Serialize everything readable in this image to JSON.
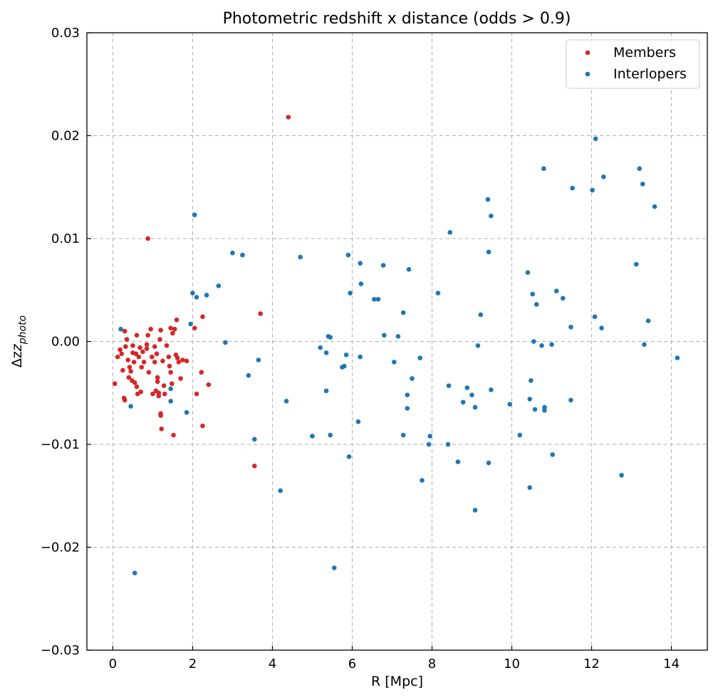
{
  "chart_data": {
    "type": "scatter",
    "title": "Photometric redshift x distance (odds > 0.9)",
    "xlabel": "R [Mpc]",
    "ylabel_main": "Δz",
    "ylabel_sub": "photo",
    "xlim": [
      -0.65,
      14.9
    ],
    "ylim": [
      -0.03,
      0.03
    ],
    "x_ticks": [
      0,
      2,
      4,
      6,
      8,
      10,
      12,
      14
    ],
    "x_tick_labels": [
      "0",
      "2",
      "4",
      "6",
      "8",
      "10",
      "12",
      "14"
    ],
    "y_ticks": [
      -0.03,
      -0.02,
      -0.01,
      0.0,
      0.01,
      0.02,
      0.03
    ],
    "y_tick_labels": [
      "−0.03",
      "−0.02",
      "−0.01",
      "0.00",
      "0.01",
      "0.02",
      "0.03"
    ],
    "grid": true,
    "legend_position": "top-right",
    "series": [
      {
        "name": "Members",
        "color": "#d62728",
        "points": [
          [
            0.05,
            -0.0041
          ],
          [
            0.12,
            -0.0015
          ],
          [
            0.18,
            -0.0008
          ],
          [
            0.22,
            -0.0012
          ],
          [
            0.25,
            -0.0028
          ],
          [
            0.28,
            -0.0055
          ],
          [
            0.3,
            -0.0057
          ],
          [
            0.3,
            0.001
          ],
          [
            0.32,
            -0.0005
          ],
          [
            0.35,
            0.0002
          ],
          [
            0.38,
            -0.0018
          ],
          [
            0.4,
            -0.0035
          ],
          [
            0.42,
            -0.0025
          ],
          [
            0.45,
            -0.0029
          ],
          [
            0.48,
            -0.0038
          ],
          [
            0.5,
            -0.0004
          ],
          [
            0.5,
            -0.0011
          ],
          [
            0.53,
            -0.002
          ],
          [
            0.55,
            -0.004
          ],
          [
            0.58,
            -0.0012
          ],
          [
            0.6,
            0.0006
          ],
          [
            0.6,
            -0.0044
          ],
          [
            0.62,
            -0.0051
          ],
          [
            0.65,
            -0.0015
          ],
          [
            0.68,
            -0.0006
          ],
          [
            0.7,
            -0.0049
          ],
          [
            0.72,
            -0.0025
          ],
          [
            0.75,
            -0.001
          ],
          [
            0.78,
            -0.002
          ],
          [
            0.85,
            -0.0003
          ],
          [
            0.85,
            -0.0007
          ],
          [
            0.88,
            0.0006
          ],
          [
            0.9,
            -0.003
          ],
          [
            0.95,
            0.0012
          ],
          [
            0.98,
            -0.0015
          ],
          [
            1.0,
            -0.0051
          ],
          [
            1.05,
            -0.0005
          ],
          [
            1.05,
            -0.002
          ],
          [
            1.08,
            -0.0048
          ],
          [
            1.1,
            -0.0012
          ],
          [
            1.12,
            -0.0035
          ],
          [
            1.12,
            -0.0039
          ],
          [
            1.15,
            -0.005
          ],
          [
            1.15,
            -0.0053
          ],
          [
            1.18,
            0.0002
          ],
          [
            1.2,
            0.0011
          ],
          [
            1.2,
            -0.007
          ],
          [
            1.2,
            -0.0072
          ],
          [
            1.22,
            -0.0085
          ],
          [
            1.25,
            -0.0019
          ],
          [
            1.28,
            -0.0043
          ],
          [
            1.3,
            -0.0051
          ],
          [
            1.35,
            -0.0004
          ],
          [
            1.4,
            -0.0015
          ],
          [
            1.42,
            -0.0024
          ],
          [
            1.45,
            -0.003
          ],
          [
            1.45,
            0.0013
          ],
          [
            1.48,
            -0.0041
          ],
          [
            1.5,
            0.0008
          ],
          [
            1.52,
            -0.0091
          ],
          [
            1.55,
            0.0012
          ],
          [
            1.58,
            -0.0013
          ],
          [
            1.6,
            0.0021
          ],
          [
            1.62,
            -0.0016
          ],
          [
            1.65,
            -0.002
          ],
          [
            1.7,
            -0.0036
          ],
          [
            1.75,
            -0.0018
          ],
          [
            1.85,
            -0.0019
          ],
          [
            2.05,
            0.0013
          ],
          [
            2.1,
            -0.0051
          ],
          [
            2.22,
            -0.003
          ],
          [
            2.25,
            0.0024
          ],
          [
            2.25,
            -0.0082
          ],
          [
            2.4,
            -0.0042
          ],
          [
            3.55,
            -0.0121
          ],
          [
            3.7,
            0.0027
          ],
          [
            4.4,
            0.0218
          ],
          [
            0.88,
            0.01
          ]
        ]
      },
      {
        "name": "Interlopers",
        "color": "#1f77b4",
        "points": [
          [
            0.2,
            0.0012
          ],
          [
            0.45,
            -0.0063
          ],
          [
            0.55,
            -0.0225
          ],
          [
            1.45,
            -0.0046
          ],
          [
            1.45,
            -0.0058
          ],
          [
            1.85,
            -0.0069
          ],
          [
            1.95,
            0.0017
          ],
          [
            2.0,
            0.0047
          ],
          [
            2.05,
            0.0123
          ],
          [
            2.1,
            0.0043
          ],
          [
            2.35,
            0.0045
          ],
          [
            2.65,
            0.0054
          ],
          [
            2.82,
            -0.0001
          ],
          [
            3.0,
            0.0086
          ],
          [
            3.25,
            0.0084
          ],
          [
            3.4,
            -0.0033
          ],
          [
            3.55,
            -0.0095
          ],
          [
            3.65,
            -0.0018
          ],
          [
            4.2,
            -0.0145
          ],
          [
            4.35,
            -0.0058
          ],
          [
            4.7,
            0.0082
          ],
          [
            5.0,
            -0.0092
          ],
          [
            5.2,
            -0.0006
          ],
          [
            5.35,
            -0.0011
          ],
          [
            5.35,
            -0.0048
          ],
          [
            5.4,
            0.0005
          ],
          [
            5.45,
            0.0004
          ],
          [
            5.45,
            -0.0091
          ],
          [
            5.55,
            -0.022
          ],
          [
            5.75,
            -0.0025
          ],
          [
            5.8,
            -0.0024
          ],
          [
            5.85,
            -0.0013
          ],
          [
            5.9,
            0.0084
          ],
          [
            5.92,
            -0.0112
          ],
          [
            5.95,
            0.0047
          ],
          [
            6.15,
            -0.0078
          ],
          [
            6.2,
            0.0076
          ],
          [
            6.2,
            -0.0015
          ],
          [
            6.22,
            0.0056
          ],
          [
            6.55,
            0.0041
          ],
          [
            6.65,
            0.0041
          ],
          [
            6.78,
            0.0074
          ],
          [
            6.8,
            0.0006
          ],
          [
            7.05,
            -0.002
          ],
          [
            7.15,
            0.0005
          ],
          [
            7.28,
            0.0028
          ],
          [
            7.28,
            -0.0091
          ],
          [
            7.38,
            -0.0052
          ],
          [
            7.38,
            -0.0065
          ],
          [
            7.42,
            0.007
          ],
          [
            7.5,
            -0.0036
          ],
          [
            7.7,
            -0.0016
          ],
          [
            7.75,
            -0.0135
          ],
          [
            7.92,
            -0.01
          ],
          [
            7.95,
            -0.0092
          ],
          [
            8.15,
            0.0047
          ],
          [
            8.4,
            -0.01
          ],
          [
            8.42,
            -0.0043
          ],
          [
            8.45,
            0.0106
          ],
          [
            8.65,
            -0.0117
          ],
          [
            8.78,
            -0.0059
          ],
          [
            8.88,
            -0.0045
          ],
          [
            9.0,
            -0.0052
          ],
          [
            9.08,
            -0.0064
          ],
          [
            9.08,
            -0.0164
          ],
          [
            9.15,
            -0.0004
          ],
          [
            9.22,
            0.0026
          ],
          [
            9.4,
            0.0138
          ],
          [
            9.42,
            0.0087
          ],
          [
            9.42,
            -0.0118
          ],
          [
            9.48,
            -0.0047
          ],
          [
            9.48,
            0.0122
          ],
          [
            9.95,
            -0.0061
          ],
          [
            10.2,
            -0.0091
          ],
          [
            10.4,
            0.0067
          ],
          [
            10.45,
            -0.0056
          ],
          [
            10.45,
            -0.0142
          ],
          [
            10.48,
            -0.0038
          ],
          [
            10.52,
            0.0046
          ],
          [
            10.55,
            0.0
          ],
          [
            10.58,
            -0.0066
          ],
          [
            10.62,
            0.0036
          ],
          [
            10.75,
            -0.0004
          ],
          [
            10.8,
            0.0168
          ],
          [
            10.82,
            -0.0064
          ],
          [
            10.82,
            -0.0067
          ],
          [
            11.0,
            -0.0003
          ],
          [
            11.02,
            -0.011
          ],
          [
            11.12,
            0.0049
          ],
          [
            11.28,
            0.0042
          ],
          [
            11.48,
            0.0014
          ],
          [
            11.48,
            -0.0057
          ],
          [
            11.52,
            0.0149
          ],
          [
            12.02,
            0.0147
          ],
          [
            12.08,
            0.0024
          ],
          [
            12.1,
            0.0197
          ],
          [
            12.25,
            0.0013
          ],
          [
            12.3,
            0.016
          ],
          [
            12.75,
            -0.013
          ],
          [
            13.12,
            0.0075
          ],
          [
            13.2,
            0.0168
          ],
          [
            13.28,
            0.0153
          ],
          [
            13.32,
            -0.0003
          ],
          [
            13.42,
            0.002
          ],
          [
            13.58,
            0.0131
          ],
          [
            14.15,
            -0.0016
          ]
        ]
      }
    ]
  }
}
